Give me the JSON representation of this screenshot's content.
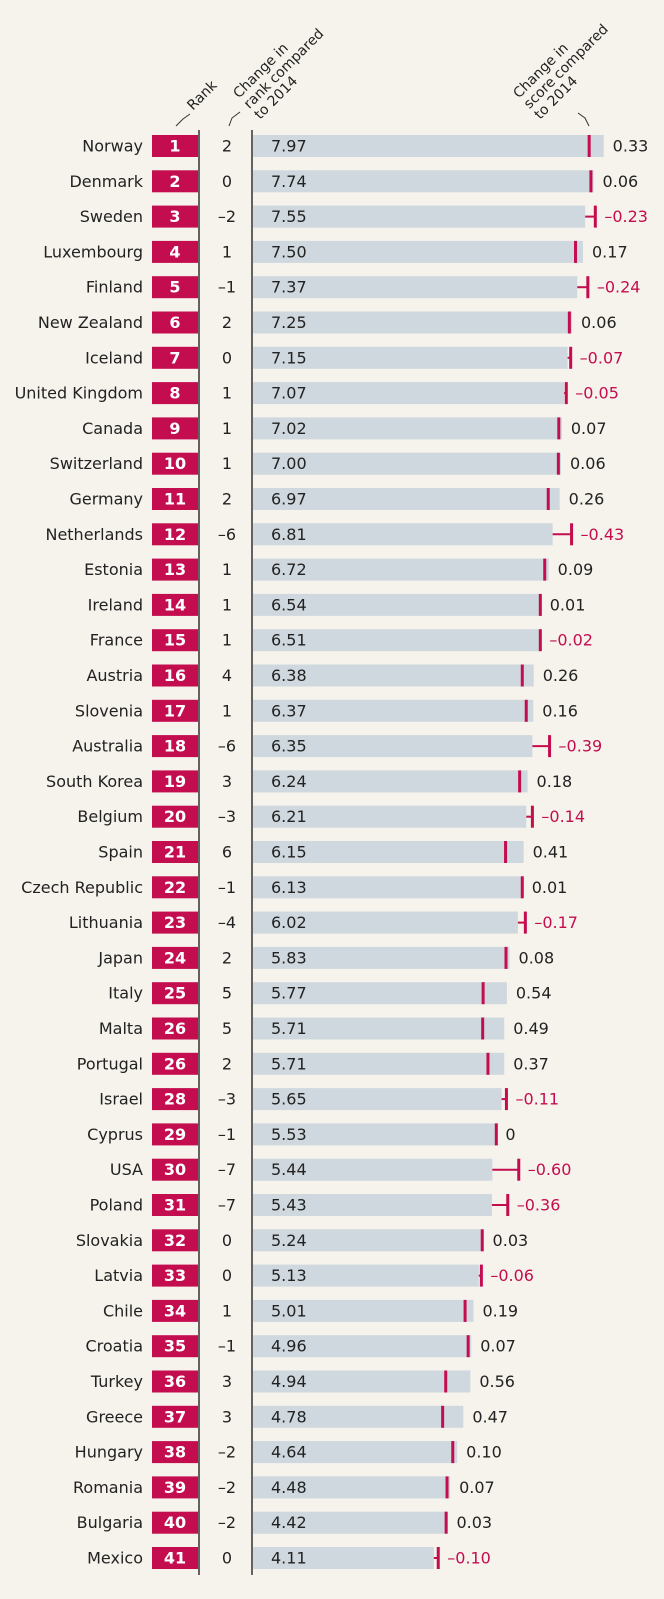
{
  "chart_data": {
    "type": "bar",
    "headers": {
      "rank": [
        "Rank"
      ],
      "rank_change": [
        "Change in",
        "rank compared",
        "to 2014"
      ],
      "score_change": [
        "Change in",
        "score compared",
        "to 2014"
      ]
    },
    "categories": [
      "Norway",
      "Denmark",
      "Sweden",
      "Luxembourg",
      "Finland",
      "New Zealand",
      "Iceland",
      "United Kingdom",
      "Canada",
      "Switzerland",
      "Germany",
      "Netherlands",
      "Estonia",
      "Ireland",
      "France",
      "Austria",
      "Slovenia",
      "Australia",
      "South Korea",
      "Belgium",
      "Spain",
      "Czech Republic",
      "Lithuania",
      "Japan",
      "Italy",
      "Malta",
      "Portugal",
      "Israel",
      "Cyprus",
      "USA",
      "Poland",
      "Slovakia",
      "Latvia",
      "Chile",
      "Croatia",
      "Turkey",
      "Greece",
      "Hungary",
      "Romania",
      "Bulgaria",
      "Mexico"
    ],
    "ranks": [
      1,
      2,
      3,
      4,
      5,
      6,
      7,
      8,
      9,
      10,
      11,
      12,
      13,
      14,
      15,
      16,
      17,
      18,
      19,
      20,
      21,
      22,
      23,
      24,
      25,
      26,
      26,
      28,
      29,
      30,
      31,
      32,
      33,
      34,
      35,
      36,
      37,
      38,
      39,
      40,
      41
    ],
    "rank_changes": [
      2,
      0,
      -2,
      1,
      -1,
      2,
      0,
      1,
      1,
      1,
      2,
      -6,
      1,
      1,
      1,
      4,
      1,
      -6,
      3,
      -3,
      6,
      -1,
      -4,
      2,
      5,
      5,
      2,
      -3,
      -1,
      -7,
      -7,
      0,
      0,
      1,
      -1,
      3,
      3,
      -2,
      -2,
      -2,
      0
    ],
    "rank_change_labels": [
      "2",
      "0",
      "–2",
      "1",
      "–1",
      "2",
      "0",
      "1",
      "1",
      "1",
      "2",
      "–6",
      "1",
      "1",
      "1",
      "4",
      "1",
      "–6",
      "3",
      "–3",
      "6",
      "–1",
      "–4",
      "2",
      "5",
      "5",
      "2",
      "–3",
      "–1",
      "–7",
      "–7",
      "0",
      "0",
      "1",
      "–1",
      "3",
      "3",
      "–2",
      "–2",
      "–2",
      "0"
    ],
    "scores": [
      7.97,
      7.74,
      7.55,
      7.5,
      7.37,
      7.25,
      7.15,
      7.07,
      7.02,
      7.0,
      6.97,
      6.81,
      6.72,
      6.54,
      6.51,
      6.38,
      6.37,
      6.35,
      6.24,
      6.21,
      6.15,
      6.13,
      6.02,
      5.83,
      5.77,
      5.71,
      5.71,
      5.65,
      5.53,
      5.44,
      5.43,
      5.24,
      5.13,
      5.01,
      4.96,
      4.94,
      4.78,
      4.64,
      4.48,
      4.42,
      4.11
    ],
    "score_labels": [
      "7.97",
      "7.74",
      "7.55",
      "7.50",
      "7.37",
      "7.25",
      "7.15",
      "7.07",
      "7.02",
      "7.00",
      "6.97",
      "6.81",
      "6.72",
      "6.54",
      "6.51",
      "6.38",
      "6.37",
      "6.35",
      "6.24",
      "6.21",
      "6.15",
      "6.13",
      "6.02",
      "5.83",
      "5.77",
      "5.71",
      "5.71",
      "5.65",
      "5.53",
      "5.44",
      "5.43",
      "5.24",
      "5.13",
      "5.01",
      "4.96",
      "4.94",
      "4.78",
      "4.64",
      "4.48",
      "4.42",
      "4.11"
    ],
    "score_changes": [
      0.33,
      0.06,
      -0.23,
      0.17,
      -0.24,
      0.06,
      -0.07,
      -0.05,
      0.07,
      0.06,
      0.26,
      -0.43,
      0.09,
      0.01,
      -0.02,
      0.26,
      0.16,
      -0.39,
      0.18,
      -0.14,
      0.41,
      0.01,
      -0.17,
      0.08,
      0.54,
      0.49,
      0.37,
      -0.11,
      0,
      -0.6,
      -0.36,
      0.03,
      -0.06,
      0.19,
      0.07,
      0.56,
      0.47,
      0.1,
      0.07,
      0.03,
      -0.1
    ],
    "score_change_labels": [
      "0.33",
      "0.06",
      "–0.23",
      "0.17",
      "–0.24",
      "0.06",
      "–0.07",
      "–0.05",
      "0.07",
      "0.06",
      "0.26",
      "–0.43",
      "0.09",
      "0.01",
      "–0.02",
      "0.26",
      "0.16",
      "–0.39",
      "0.18",
      "–0.14",
      "0.41",
      "0.01",
      "–0.17",
      "0.08",
      "0.54",
      "0.49",
      "0.37",
      "–0.11",
      "0",
      "–0.60",
      "–0.36",
      "0.03",
      "–0.06",
      "0.19",
      "0.07",
      "0.56",
      "0.47",
      "0.10",
      "0.07",
      "0.03",
      "–0.10"
    ],
    "xlim": [
      0,
      8
    ],
    "bar_color": "#cfd8de",
    "mark_color": "#c30d4f",
    "rank_box_color": "#c30d4f",
    "text_color": "#222222"
  }
}
